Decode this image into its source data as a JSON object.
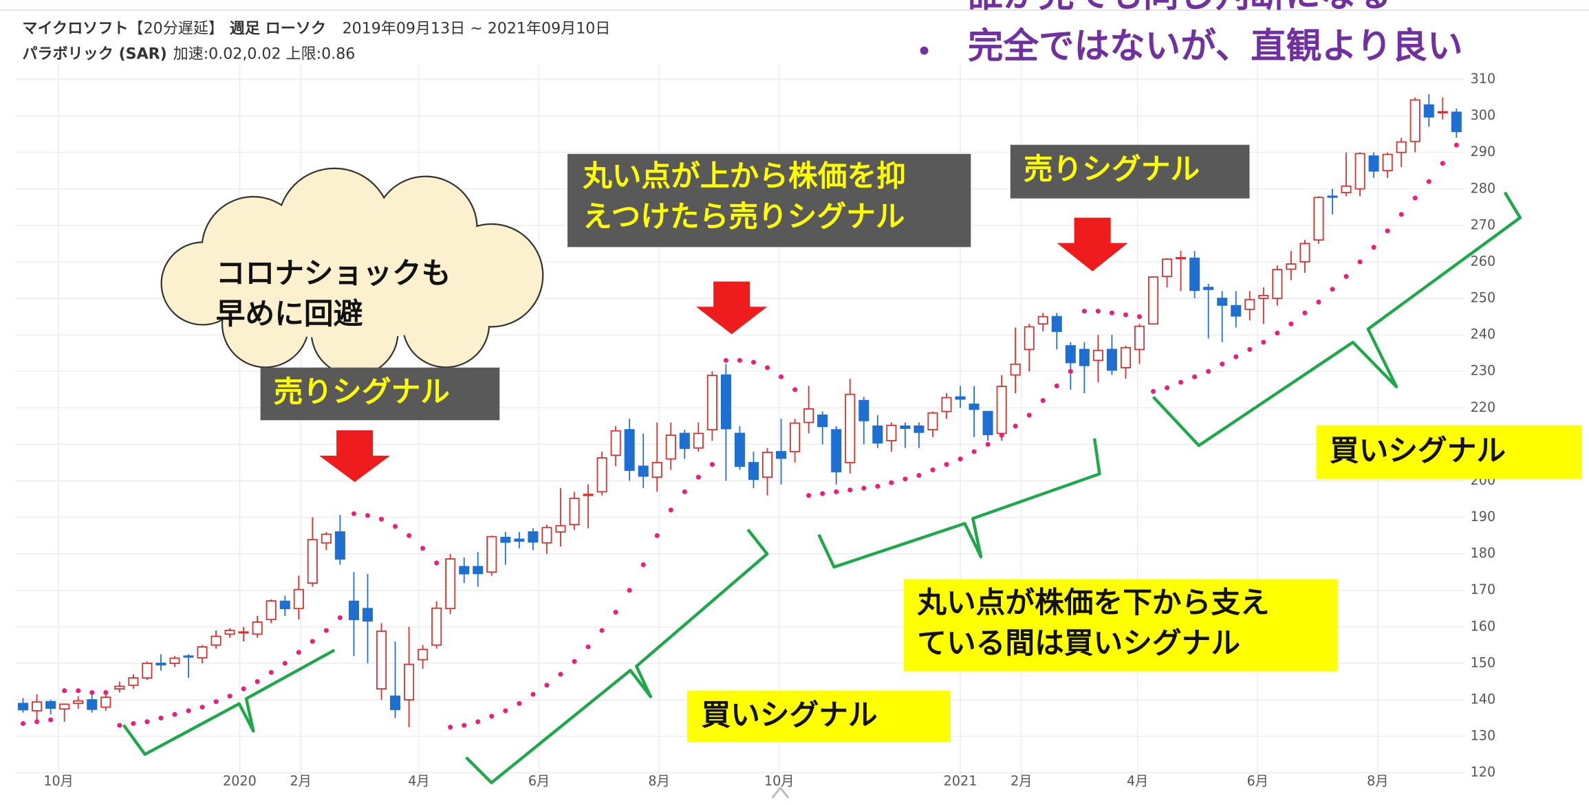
{
  "chart_data": {
    "type": "candlestick",
    "header": {
      "name": "マイクロソフト",
      "delay": "【20分遅延】",
      "kind": "週足 ローソク",
      "range": "2019年09月13日 ~ 2021年09月10日",
      "indicator": "パラボリック (SAR)",
      "params": "加速:0.02,0.02 上限:0.86"
    },
    "x": [
      "2019-09-13",
      "2019-09-20",
      "2019-09-27",
      "2019-10-04",
      "2019-10-11",
      "2019-10-18",
      "2019-10-25",
      "2019-11-01",
      "2019-11-08",
      "2019-11-15",
      "2019-11-22",
      "2019-11-29",
      "2019-12-06",
      "2019-12-13",
      "2019-12-20",
      "2019-12-27",
      "2020-01-03",
      "2020-01-10",
      "2020-01-17",
      "2020-01-24",
      "2020-01-31",
      "2020-02-07",
      "2020-02-14",
      "2020-02-21",
      "2020-02-28",
      "2020-03-06",
      "2020-03-13",
      "2020-03-20",
      "2020-03-27",
      "2020-04-03",
      "2020-04-10",
      "2020-04-17",
      "2020-04-24",
      "2020-05-01",
      "2020-05-08",
      "2020-05-15",
      "2020-05-22",
      "2020-05-29",
      "2020-06-05",
      "2020-06-12",
      "2020-06-19",
      "2020-06-26",
      "2020-07-03",
      "2020-07-10",
      "2020-07-17",
      "2020-07-24",
      "2020-07-31",
      "2020-08-07",
      "2020-08-14",
      "2020-08-21",
      "2020-08-28",
      "2020-09-04",
      "2020-09-11",
      "2020-09-18",
      "2020-09-25",
      "2020-10-02",
      "2020-10-09",
      "2020-10-16",
      "2020-10-23",
      "2020-10-30",
      "2020-11-06",
      "2020-11-13",
      "2020-11-20",
      "2020-11-27",
      "2020-12-04",
      "2020-12-11",
      "2020-12-18",
      "2020-12-25",
      "2021-01-01",
      "2021-01-08",
      "2021-01-15",
      "2021-01-22",
      "2021-01-29",
      "2021-02-05",
      "2021-02-12",
      "2021-02-19",
      "2021-02-26",
      "2021-03-05",
      "2021-03-12",
      "2021-03-19",
      "2021-03-26",
      "2021-04-02",
      "2021-04-09",
      "2021-04-16",
      "2021-04-23",
      "2021-04-30",
      "2021-05-07",
      "2021-05-14",
      "2021-05-21",
      "2021-05-28",
      "2021-06-04",
      "2021-06-11",
      "2021-06-18",
      "2021-06-25",
      "2021-07-02",
      "2021-07-09",
      "2021-07-16",
      "2021-07-23",
      "2021-07-30",
      "2021-08-06",
      "2021-08-13",
      "2021-08-20",
      "2021-08-27",
      "2021-09-03",
      "2021-09-10"
    ],
    "open": [
      139,
      137,
      139.5,
      137.5,
      139,
      140,
      138,
      143,
      144,
      146,
      150,
      150,
      152,
      151.5,
      155,
      158,
      158.5,
      158,
      162,
      167,
      165,
      172,
      183,
      186,
      167,
      165,
      143,
      141,
      140,
      151,
      155,
      165,
      176.5,
      176.5,
      175,
      184.5,
      184,
      186,
      183,
      186,
      188,
      196,
      197,
      207,
      214,
      204,
      201,
      206,
      213,
      209,
      214,
      229,
      213,
      205,
      201,
      208,
      208,
      216,
      218,
      214,
      205,
      222,
      215,
      211,
      215,
      215,
      214,
      219,
      223,
      221,
      219,
      213,
      229,
      236,
      243,
      245,
      237,
      236,
      233,
      236,
      231,
      236,
      243,
      256,
      261,
      261,
      253,
      250,
      248,
      247,
      250,
      250,
      258,
      260,
      266,
      278,
      279,
      280,
      289,
      285,
      290,
      293,
      303,
      301,
      301
    ],
    "high": [
      140.5,
      141.5,
      140,
      139,
      141,
      141.5,
      142,
      145,
      147,
      150.5,
      152.5,
      152,
      152.5,
      155,
      159,
      159.6,
      160,
      163,
      167.5,
      168.5,
      174,
      190,
      186,
      190.7,
      175,
      174.5,
      161,
      156,
      160,
      155,
      167,
      180,
      179,
      180.5,
      185,
      186,
      186,
      187,
      188,
      198,
      197,
      199,
      208,
      215,
      217,
      213,
      216,
      216,
      214,
      216,
      230,
      232,
      215,
      208,
      209,
      217,
      217,
      226,
      219,
      215,
      228,
      223,
      218,
      216,
      216,
      216,
      219,
      224,
      226,
      226,
      219,
      229,
      242,
      243,
      246,
      246,
      238,
      238,
      240,
      240,
      237,
      243,
      256,
      261,
      263,
      263,
      254,
      252,
      252,
      252,
      253,
      259,
      263,
      266,
      278,
      280,
      290,
      290,
      290,
      290,
      294,
      305,
      306,
      305,
      302
    ],
    "low": [
      136.5,
      134,
      136,
      134,
      137.5,
      136.5,
      137,
      142,
      143,
      145.5,
      148,
      149,
      146,
      150,
      154,
      157,
      156,
      157,
      161,
      163,
      162,
      171,
      181,
      177,
      152,
      150,
      140,
      135,
      132.5,
      148.5,
      154,
      163.5,
      172,
      171,
      174,
      177,
      181.5,
      181,
      180,
      182,
      186.5,
      187,
      196,
      204,
      200,
      198,
      197,
      203,
      206,
      208,
      211,
      200,
      203,
      198,
      196,
      199,
      205,
      213,
      210,
      199,
      202,
      210,
      209,
      208,
      209,
      209,
      212,
      217,
      220,
      212,
      211,
      211,
      224,
      230,
      241,
      236,
      225,
      224,
      227,
      229,
      228,
      232,
      243,
      253,
      252,
      250,
      239,
      238,
      242,
      244,
      243,
      248,
      255,
      257,
      265,
      273,
      278,
      278,
      283,
      283,
      286,
      290,
      297,
      299,
      294
    ],
    "close": [
      137.3,
      139.4,
      137.7,
      138.8,
      139.7,
      137.4,
      140.7,
      143.7,
      146,
      150,
      149.6,
      151.4,
      151.75,
      154.5,
      157.4,
      159,
      158.6,
      161.3,
      167.1,
      165,
      170.2,
      183.9,
      185.35,
      178.6,
      162,
      161.6,
      158.8,
      137.35,
      149.7,
      153.8,
      165.1,
      178.6,
      174.55,
      174.6,
      184.7,
      183.2,
      183.5,
      183.25,
      187.2,
      187.7,
      195.2,
      196.3,
      206.3,
      213.7,
      202.9,
      201.3,
      205,
      212.5,
      208.9,
      213,
      228.9,
      214.3,
      204,
      200.4,
      207.8,
      206.2,
      215.8,
      219.7,
      214.9,
      202.5,
      223.7,
      216.5,
      210.4,
      215.2,
      214.4,
      213.3,
      218.6,
      222.8,
      222.4,
      219.6,
      212.7,
      225.9,
      231.96,
      242.2,
      244.99,
      240.97,
      232.4,
      231.6,
      235.75,
      230.35,
      236.5,
      242.35,
      255.85,
      260.74,
      261.15,
      252.2,
      252.46,
      248.15,
      245.17,
      249.68,
      250.79,
      257.89,
      259.43,
      265.02,
      277.65,
      277.94,
      280.75,
      289.67,
      284.91,
      289.46,
      292.85,
      304.36,
      299.72,
      301.14,
      295.71
    ],
    "up_color": "#d3302f",
    "down_color": "#1f6fd1",
    "sar": {
      "color": "#ec1f78",
      "values": [
        133.5,
        134,
        134.5,
        142.5,
        142.5,
        142,
        142,
        133,
        133.5,
        134,
        135,
        136,
        137,
        138,
        139.5,
        141,
        143,
        145,
        147.5,
        150,
        153,
        156,
        159,
        162.5,
        191,
        190.5,
        189.5,
        187.5,
        185,
        181.5,
        177.5,
        132.5,
        133,
        134,
        135.5,
        137,
        139,
        141.5,
        144,
        147,
        150.5,
        154.5,
        159,
        164,
        170,
        177,
        185,
        192,
        197,
        201,
        204.5,
        233,
        233,
        232.5,
        231,
        228.5,
        225,
        196,
        196.5,
        197,
        197.5,
        198,
        198.5,
        199.5,
        200.5,
        201.5,
        203,
        204.5,
        206,
        208,
        210,
        212.5,
        215,
        218,
        222,
        226,
        230,
        246.5,
        246.5,
        246,
        245.5,
        245,
        224.5,
        225.5,
        227,
        228.5,
        230,
        232,
        234,
        236,
        238,
        240.5,
        243,
        246,
        249,
        252.5,
        256,
        260,
        264,
        268.5,
        273,
        277.5,
        282,
        287,
        292
      ]
    },
    "xlim": [
      "2019-09-09",
      "2021-09-14"
    ],
    "xticks": [
      {
        "value": "2019-10-01",
        "label": "10月"
      },
      {
        "value": "2020-01-01",
        "label": "2020"
      },
      {
        "value": "2020-02-01",
        "label": "2月"
      },
      {
        "value": "2020-04-01",
        "label": "4月"
      },
      {
        "value": "2020-06-01",
        "label": "6月"
      },
      {
        "value": "2020-08-01",
        "label": "8月"
      },
      {
        "value": "2020-10-01",
        "label": "10月"
      },
      {
        "value": "2021-01-01",
        "label": "2021"
      },
      {
        "value": "2021-02-01",
        "label": "2月"
      },
      {
        "value": "2021-04-01",
        "label": "4月"
      },
      {
        "value": "2021-06-01",
        "label": "6月"
      },
      {
        "value": "2021-08-01",
        "label": "8月"
      }
    ],
    "ylim": [
      119.5,
      314
    ],
    "yticks": [
      120,
      130,
      140,
      150,
      160,
      170,
      180,
      190,
      200,
      210,
      220,
      230,
      240,
      250,
      260,
      270,
      280,
      290,
      300,
      310
    ],
    "grid": true,
    "callouts": {
      "cloud": [
        "コロナショックも",
        "早めに回避"
      ],
      "sell_1": "売りシグナル",
      "sell_2": [
        "丸い点が上から株価を抑",
        "えつけたら売りシグナル"
      ],
      "sell_3": "売りシグナル",
      "buy_1": "買いシグナル",
      "buy_2": [
        "丸い点が株価を下から支え",
        "ている間は買いシグナル"
      ],
      "buy_3": "買いシグナル"
    },
    "overlay": [
      "誰が見ても同じ判断になる",
      "完全ではないが、直観より良い"
    ]
  }
}
